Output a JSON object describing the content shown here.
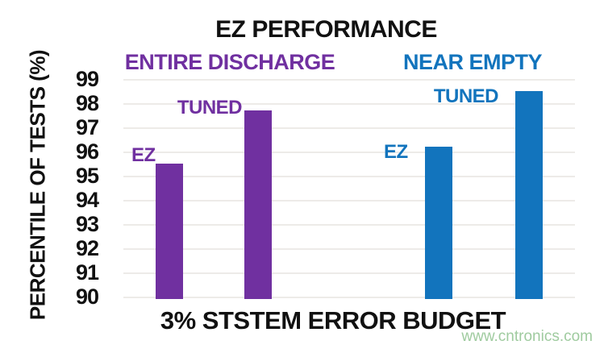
{
  "title": "EZ PERFORMANCE",
  "watermark": "www.cntronics.com",
  "colors": {
    "entire_discharge": "#7030A0",
    "near_empty": "#1274BD",
    "grid": "#EDEBE8",
    "text": "#1A1A1A",
    "watermark": "#9FCB9F"
  },
  "chart_data": {
    "type": "bar",
    "title": "EZ PERFORMANCE",
    "xlabel": "3% STSTEM ERROR BUDGET",
    "ylabel": "PERCENTILE OF TESTS (%)",
    "ylim": [
      90,
      99
    ],
    "yticks": [
      99,
      98,
      97,
      96,
      95,
      94,
      93,
      92,
      91,
      90
    ],
    "grid": true,
    "legend_position": "none",
    "groups": [
      {
        "label": "ENTIRE DISCHARGE",
        "color": "#7030A0",
        "bars": [
          {
            "label": "EZ",
            "value": 95.5
          },
          {
            "label": "TUNED",
            "value": 97.7
          }
        ]
      },
      {
        "label": "NEAR EMPTY",
        "color": "#1274BD",
        "bars": [
          {
            "label": "EZ",
            "value": 96.2
          },
          {
            "label": "TUNED",
            "value": 98.5
          }
        ]
      }
    ]
  }
}
